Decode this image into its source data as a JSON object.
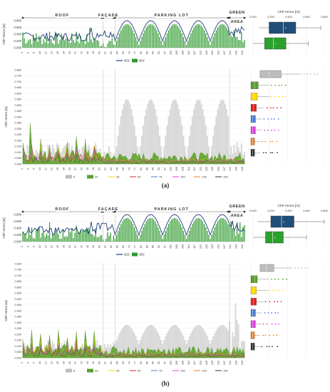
{
  "panels": [
    {
      "caption": "(a)",
      "zones": [
        "ROOF",
        "FAÇADE",
        "PARKING LOT",
        "GREEN AREA"
      ],
      "top_chart": {
        "type": "line+bar",
        "ylabel": "ChP errors [m]",
        "ylim": [
          0,
          0.8
        ],
        "yticks": [
          "0.000",
          "0.200",
          "0.400",
          "0.600",
          "0.800"
        ],
        "legend": [
          "6Ed",
          "4Ed"
        ],
        "line_color": "#1f3d7a",
        "bar_color": "#2f9a2f"
      },
      "top_box": {
        "title": "ChP errors [m]",
        "xticks": [
          "0.000",
          "0.200",
          "0.400",
          "0.600",
          "0.800"
        ],
        "boxes": [
          {
            "name": "6Ed",
            "color": "#1f4e79",
            "whisker_min": 0.07,
            "q1": 0.18,
            "median": 0.34,
            "q3": 0.48,
            "whisker_max": 0.76
          },
          {
            "name": "4Ed",
            "color": "#2ca02c",
            "whisker_min": 0.0,
            "q1": 0.13,
            "median": 0.23,
            "q3": 0.37,
            "whisker_max": 0.62
          }
        ]
      },
      "main_chart": {
        "type": "area",
        "ylabel": "ChP errors [m]",
        "ylim": [
          0,
          0.8
        ],
        "yticks": [
          "0.000",
          "0.050",
          "0.100",
          "0.150",
          "0.200",
          "0.250",
          "0.300",
          "0.350",
          "0.400",
          "0.450",
          "0.500",
          "0.550",
          "0.600",
          "0.650",
          "0.700",
          "0.750",
          "0.800"
        ],
        "xticks": [
          "1",
          "5",
          "9",
          "13",
          "17",
          "21",
          "25",
          "29",
          "33",
          "37",
          "41",
          "45",
          "49",
          "53",
          "57",
          "61",
          "65",
          "69",
          "73",
          "77",
          "81",
          "85",
          "89",
          "93",
          "97",
          "101",
          "105",
          "109",
          "113",
          "117",
          "121",
          "125",
          "129",
          "133",
          "137",
          "141",
          "145",
          "149"
        ],
        "legend": [
          "8",
          "20",
          "25",
          "50",
          "75",
          "100",
          "125",
          "150"
        ]
      },
      "box_strip": [
        {
          "name": "8",
          "color": "#bdbdbd",
          "q1": 0.1,
          "q3": 0.33,
          "median": 0.2,
          "max": 0.55
        },
        {
          "name": "20",
          "color": "#5aa02c",
          "q1": 0.0,
          "q3": 0.08,
          "median": 0.04,
          "max": 0.2
        },
        {
          "name": "25",
          "color": "#ffd700",
          "q1": 0.0,
          "q3": 0.07,
          "median": 0.03,
          "max": 0.2
        },
        {
          "name": "50",
          "color": "#e02020",
          "q1": 0.0,
          "q3": 0.06,
          "median": 0.03,
          "max": 0.14
        },
        {
          "name": "75",
          "color": "#4a7fd4",
          "q1": 0.0,
          "q3": 0.05,
          "median": 0.02,
          "max": 0.12
        },
        {
          "name": "100",
          "color": "#e040e0",
          "q1": 0.0,
          "q3": 0.05,
          "median": 0.02,
          "max": 0.12
        },
        {
          "name": "125",
          "color": "#f08020",
          "q1": 0.0,
          "q3": 0.04,
          "median": 0.02,
          "max": 0.1
        },
        {
          "name": "150",
          "color": "#303030",
          "q1": 0.0,
          "q3": 0.04,
          "median": 0.02,
          "max": 0.1
        }
      ]
    },
    {
      "caption": "(b)",
      "zones": [
        "ROOF",
        "FAÇADE",
        "PARKING LOT",
        "GREEN AREA"
      ],
      "top_chart": {
        "type": "line+bar",
        "ylabel": "ChP errors [m]",
        "ylim": [
          0,
          0.8
        ],
        "yticks": [
          "0.000",
          "0.200",
          "0.400",
          "0.600",
          "0.800"
        ],
        "legend": [
          "6Ed",
          "4Ed"
        ],
        "line_color": "#1f3d7a",
        "bar_color": "#2f9a2f"
      },
      "top_box": {
        "title": "ChP errors [m]",
        "xticks": [
          "0.000",
          "0.200",
          "0.400",
          "0.600",
          "0.800"
        ],
        "boxes": [
          {
            "name": "6Ed",
            "color": "#1f4e79",
            "whisker_min": 0.05,
            "q1": 0.2,
            "median": 0.32,
            "q3": 0.46,
            "whisker_max": 0.8
          },
          {
            "name": "4Ed",
            "color": "#2ca02c",
            "whisker_min": 0.0,
            "q1": 0.14,
            "median": 0.22,
            "q3": 0.34,
            "whisker_max": 0.6
          }
        ]
      },
      "main_chart": {
        "type": "area",
        "ylabel": "ChP errors [m]",
        "ylim": [
          0,
          0.8
        ],
        "yticks": [
          "0.000",
          "0.050",
          "0.100",
          "0.150",
          "0.200",
          "0.250",
          "0.300",
          "0.350",
          "0.400",
          "0.450",
          "0.500",
          "0.550",
          "0.600",
          "0.650",
          "0.700",
          "0.750",
          "0.800"
        ],
        "xticks": [
          "1",
          "5",
          "9",
          "13",
          "17",
          "21",
          "25",
          "29",
          "33",
          "37",
          "41",
          "45",
          "49",
          "53",
          "57",
          "61",
          "65",
          "69",
          "73",
          "77",
          "81",
          "85",
          "89",
          "93",
          "97",
          "101",
          "105",
          "109",
          "113",
          "117",
          "121",
          "125",
          "129",
          "133",
          "137",
          "141",
          "145",
          "149"
        ],
        "legend": [
          "8",
          "20",
          "25",
          "50",
          "75",
          "100",
          "125",
          "150"
        ]
      },
      "box_strip": [
        {
          "name": "8",
          "color": "#bdbdbd",
          "q1": 0.1,
          "q3": 0.25,
          "median": 0.17,
          "max": 0.45
        },
        {
          "name": "20",
          "color": "#5aa02c",
          "q1": 0.0,
          "q3": 0.07,
          "median": 0.04,
          "max": 0.2
        },
        {
          "name": "25",
          "color": "#ffd700",
          "q1": 0.0,
          "q3": 0.06,
          "median": 0.03,
          "max": 0.18
        },
        {
          "name": "50",
          "color": "#e02020",
          "q1": 0.0,
          "q3": 0.06,
          "median": 0.03,
          "max": 0.14
        },
        {
          "name": "75",
          "color": "#4a7fd4",
          "q1": 0.0,
          "q3": 0.05,
          "median": 0.02,
          "max": 0.12
        },
        {
          "name": "100",
          "color": "#e040e0",
          "q1": 0.0,
          "q3": 0.05,
          "median": 0.02,
          "max": 0.12
        },
        {
          "name": "125",
          "color": "#f08020",
          "q1": 0.0,
          "q3": 0.04,
          "median": 0.02,
          "max": 0.1
        },
        {
          "name": "150",
          "color": "#303030",
          "q1": 0.0,
          "q3": 0.04,
          "median": 0.02,
          "max": 0.1
        }
      ]
    }
  ],
  "chart_data": [
    {
      "type": "line",
      "panel": "(a)",
      "ylabel": "ChP errors [m]",
      "ylim": [
        0,
        0.8
      ],
      "x": [
        1,
        150
      ],
      "series": [
        {
          "name": "6Ed",
          "shape": "arches",
          "peaks": [
            0.78,
            0.8,
            0.8,
            0.8,
            0.8
          ],
          "troughs": [
            0.15,
            0.15,
            0.2,
            0.2,
            0.2,
            0.15
          ]
        },
        {
          "name": "4Ed",
          "shape": "bars",
          "peaks": [
            0.7,
            0.72,
            0.72,
            0.72,
            0.72
          ]
        }
      ]
    },
    {
      "type": "area",
      "panel": "(a)",
      "ylabel": "ChP errors [m]",
      "ylim": [
        0,
        0.8
      ],
      "series": [
        {
          "name": "8",
          "peaks": [
            0.56,
            0.52,
            0.52,
            0.44,
            0.2
          ]
        },
        {
          "name": "20",
          "max": 0.35
        },
        {
          "name": "25",
          "max": 0.25
        },
        {
          "name": "50",
          "max": 0.2
        }
      ]
    },
    {
      "type": "line",
      "panel": "(b)",
      "ylabel": "ChP errors [m]",
      "ylim": [
        0,
        0.8
      ],
      "x": [
        1,
        150
      ],
      "series": [
        {
          "name": "6Ed",
          "shape": "arches",
          "peaks": [
            0.78,
            0.8,
            0.78,
            0.75,
            0.78
          ]
        },
        {
          "name": "4Ed",
          "shape": "bars",
          "peaks": [
            0.7,
            0.7,
            0.65,
            0.6,
            0.7
          ]
        }
      ]
    },
    {
      "type": "area",
      "panel": "(b)",
      "ylabel": "ChP errors [m]",
      "ylim": [
        0,
        0.8
      ],
      "series": [
        {
          "name": "8",
          "peaks": [
            0.3,
            0.28,
            0.28,
            0.25,
            0.55
          ]
        },
        {
          "name": "20",
          "max": 0.28
        },
        {
          "name": "25",
          "max": 0.22
        },
        {
          "name": "50",
          "max": 0.18
        }
      ]
    }
  ]
}
